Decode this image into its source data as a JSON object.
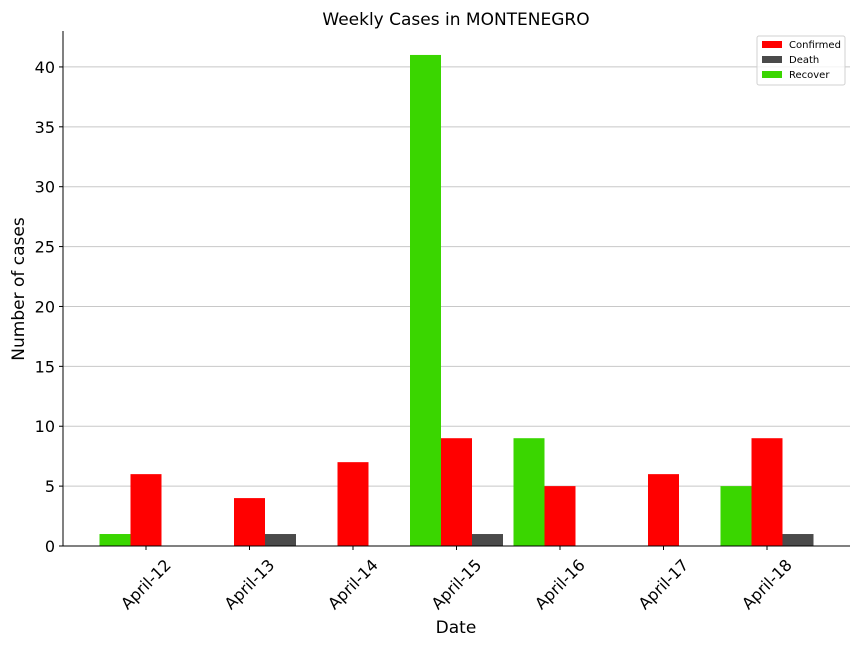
{
  "chart_data": {
    "type": "bar",
    "title": "Weekly Cases in MONTENEGRO",
    "xlabel": "Date",
    "ylabel": "Number of cases",
    "categories": [
      "April-12",
      "April-13",
      "April-14",
      "April-15",
      "April-16",
      "April-17",
      "April-18"
    ],
    "series": [
      {
        "name": "Recover",
        "color": "#3ad600",
        "values": [
          1,
          0,
          0,
          41,
          9,
          0,
          5
        ]
      },
      {
        "name": "Confirmed",
        "color": "#ff0000",
        "values": [
          6,
          4,
          7,
          9,
          5,
          6,
          9
        ]
      },
      {
        "name": "Death",
        "color": "#4a4a4a",
        "values": [
          0,
          1,
          0,
          1,
          0,
          0,
          1
        ]
      }
    ],
    "legend_order": [
      "Confirmed",
      "Death",
      "Recover"
    ],
    "ylim": [
      0,
      43
    ],
    "yticks": [
      0,
      5,
      10,
      15,
      20,
      25,
      30,
      35,
      40
    ],
    "grid": "y",
    "legend_position": "top-right"
  }
}
